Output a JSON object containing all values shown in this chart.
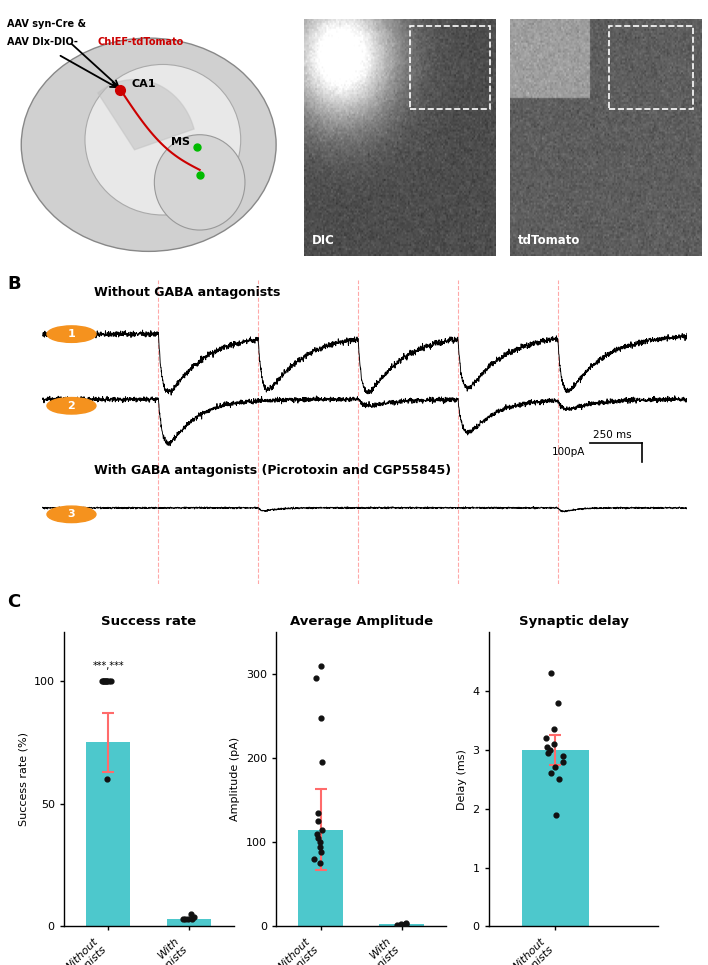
{
  "bar_color": "#4DC8CC",
  "error_color": "#FF6B6B",
  "dot_color": "#111111",
  "orange_color": "#F5921E",
  "red_dashed_color": "#FF9999",
  "success_bar_height": 75,
  "success_error": 12,
  "success_dots": [
    60,
    100,
    100,
    100,
    100,
    100,
    100,
    100,
    100,
    100
  ],
  "success_with_bar": 3,
  "success_with_dots": [
    3,
    3,
    3,
    4,
    3,
    5
  ],
  "amplitude_bar_height": 115,
  "amplitude_error": 48,
  "amplitude_dots": [
    75,
    80,
    88,
    95,
    100,
    105,
    110,
    115,
    125,
    135,
    195,
    248,
    295,
    310
  ],
  "amplitude_with_bar": 3,
  "amplitude_with_dots": [
    2,
    3,
    4,
    3,
    3
  ],
  "delay_bar_height": 3.0,
  "delay_error": 0.25,
  "delay_dots": [
    1.9,
    2.5,
    2.6,
    2.7,
    2.8,
    2.9,
    2.95,
    3.0,
    3.05,
    3.1,
    3.2,
    3.35,
    3.8,
    4.3
  ],
  "c1_title": "Success rate",
  "c2_title": "Average Amplitude",
  "c3_title": "Synaptic delay",
  "c1_ylabel": "Success rate (%)",
  "c2_ylabel": "Amplitude (pA)",
  "c3_ylabel": "Delay (ms)",
  "c1_ylim": [
    0,
    120
  ],
  "c2_ylim": [
    0,
    350
  ],
  "c3_ylim": [
    0,
    5
  ],
  "c1_yticks": [
    0,
    50,
    100
  ],
  "c2_yticks": [
    0,
    100,
    200,
    300
  ],
  "c3_yticks": [
    0,
    1,
    2,
    3,
    4
  ],
  "significance_text": "***,***"
}
